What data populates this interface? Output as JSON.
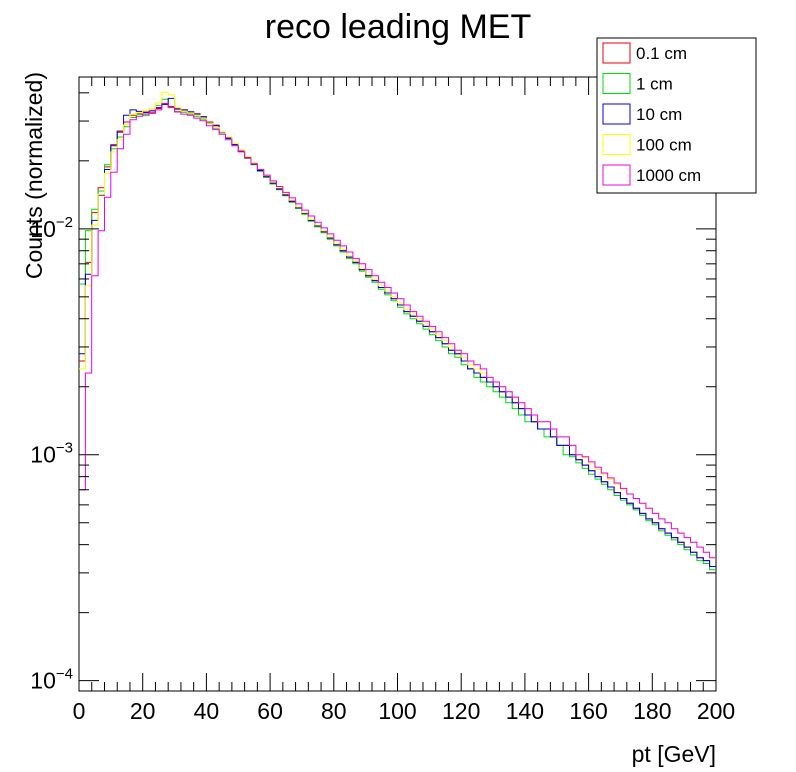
{
  "chart_data": {
    "type": "line",
    "title": "reco leading MET",
    "xlabel": "pt [GeV]",
    "ylabel": "Counts (normalized)",
    "xlim": [
      0,
      200
    ],
    "ylim": [
      9e-05,
      0.047
    ],
    "y_scale": "log",
    "x_ticks": [
      "0",
      "20",
      "40",
      "60",
      "80",
      "100",
      "120",
      "140",
      "160",
      "180",
      "200"
    ],
    "y_ticks": [
      {
        "base": "10",
        "exp": "−4",
        "value": 0.0001
      },
      {
        "base": "10",
        "exp": "−3",
        "value": 0.001
      },
      {
        "base": "10",
        "exp": "−2",
        "value": 0.01
      }
    ],
    "grid": false,
    "legend_position": "top-right",
    "x": [
      1,
      3,
      5,
      7,
      9,
      11,
      13,
      15,
      17,
      19,
      21,
      23,
      25,
      27,
      29,
      31,
      33,
      35,
      37,
      39,
      41,
      43,
      45,
      47,
      49,
      51,
      53,
      55,
      57,
      59,
      61,
      63,
      65,
      67,
      69,
      71,
      73,
      75,
      77,
      79,
      81,
      83,
      85,
      87,
      89,
      91,
      93,
      95,
      97,
      99,
      101,
      103,
      105,
      107,
      109,
      111,
      113,
      115,
      117,
      119,
      121,
      123,
      125,
      127,
      129,
      131,
      133,
      135,
      137,
      139,
      141,
      143,
      145,
      147,
      149,
      151,
      153,
      155,
      157,
      159,
      161,
      163,
      165,
      167,
      169,
      171,
      173,
      175,
      177,
      179,
      181,
      183,
      185,
      187,
      189,
      191,
      193,
      195,
      197,
      199
    ],
    "series": [
      {
        "name": "0.1 cm",
        "color": "#e8000b",
        "values": [
          0.0026,
          0.0071,
          0.0118,
          0.0152,
          0.0188,
          0.0236,
          0.0271,
          0.0297,
          0.0318,
          0.0324,
          0.0329,
          0.0325,
          0.0341,
          0.0359,
          0.0348,
          0.0338,
          0.0336,
          0.0328,
          0.0323,
          0.0314,
          0.0297,
          0.0288,
          0.0268,
          0.0253,
          0.0236,
          0.0221,
          0.0207,
          0.0194,
          0.0182,
          0.0171,
          0.016,
          0.0151,
          0.0142,
          0.0133,
          0.0124,
          0.0117,
          0.0109,
          0.0103,
          0.0097,
          0.0091,
          0.0085,
          0.008,
          0.0075,
          0.0071,
          0.0066,
          0.0062,
          0.0059,
          0.0055,
          0.0052,
          0.0049,
          0.0046,
          0.0043,
          0.0041,
          0.0039,
          0.0037,
          0.0035,
          0.0033,
          0.0031,
          0.0029,
          0.0028,
          0.0026,
          0.0024,
          0.0023,
          0.0022,
          0.0021,
          0.002,
          0.0019,
          0.0018,
          0.0017,
          0.0016,
          0.0015,
          0.0014,
          0.0013,
          0.0013,
          0.0012,
          0.0011,
          0.0011,
          0.001,
          0.00095,
          0.0009,
          0.00085,
          0.0008,
          0.00076,
          0.00072,
          0.00068,
          0.00064,
          0.00061,
          0.00058,
          0.00055,
          0.00052,
          0.0005,
          0.00047,
          0.00045,
          0.00043,
          0.00041,
          0.00039,
          0.00037,
          0.00035,
          0.00034,
          0.00032
        ]
      },
      {
        "name": "1 cm",
        "color": "#00dd00",
        "values": [
          0.0057,
          0.0098,
          0.0122,
          0.0147,
          0.0192,
          0.0226,
          0.0255,
          0.0283,
          0.0311,
          0.0321,
          0.0317,
          0.0339,
          0.0351,
          0.0375,
          0.0345,
          0.0331,
          0.0328,
          0.0322,
          0.0315,
          0.0306,
          0.0293,
          0.0279,
          0.0266,
          0.0251,
          0.0235,
          0.022,
          0.0205,
          0.0192,
          0.018,
          0.0169,
          0.0158,
          0.0149,
          0.014,
          0.0131,
          0.0123,
          0.0116,
          0.0108,
          0.0102,
          0.0096,
          0.009,
          0.0084,
          0.0079,
          0.0074,
          0.007,
          0.0065,
          0.0061,
          0.0058,
          0.0054,
          0.0051,
          0.0048,
          0.0045,
          0.0042,
          0.004,
          0.0038,
          0.0036,
          0.0034,
          0.0032,
          0.003,
          0.0028,
          0.0027,
          0.0025,
          0.0024,
          0.0022,
          0.0021,
          0.002,
          0.0019,
          0.0018,
          0.0017,
          0.0016,
          0.0015,
          0.0014,
          0.0014,
          0.0013,
          0.0012,
          0.0012,
          0.0011,
          0.001,
          0.00098,
          0.00092,
          0.00087,
          0.00082,
          0.00078,
          0.00074,
          0.0007,
          0.00066,
          0.00063,
          0.0006,
          0.00057,
          0.00054,
          0.00051,
          0.00049,
          0.00046,
          0.00044,
          0.00042,
          0.0004,
          0.00038,
          0.00036,
          0.00034,
          0.00033,
          0.00031
        ]
      },
      {
        "name": "10 cm",
        "color": "#0000e0",
        "values": [
          0.0028,
          0.0063,
          0.0109,
          0.0141,
          0.0183,
          0.0233,
          0.0268,
          0.0318,
          0.0336,
          0.0331,
          0.0327,
          0.0333,
          0.0344,
          0.0355,
          0.0378,
          0.0342,
          0.0336,
          0.033,
          0.0322,
          0.0313,
          0.0295,
          0.0286,
          0.0267,
          0.0252,
          0.0236,
          0.022,
          0.0206,
          0.0193,
          0.0181,
          0.017,
          0.0159,
          0.015,
          0.0141,
          0.0132,
          0.0124,
          0.0117,
          0.0109,
          0.0103,
          0.0097,
          0.0091,
          0.0085,
          0.008,
          0.0075,
          0.0071,
          0.0066,
          0.0062,
          0.0059,
          0.0055,
          0.0052,
          0.0049,
          0.0046,
          0.0043,
          0.0041,
          0.0039,
          0.0037,
          0.0035,
          0.0033,
          0.0031,
          0.0029,
          0.0028,
          0.0026,
          0.0024,
          0.0023,
          0.0022,
          0.0021,
          0.002,
          0.0019,
          0.0018,
          0.0017,
          0.0016,
          0.0015,
          0.0014,
          0.0013,
          0.0013,
          0.0012,
          0.0011,
          0.0011,
          0.001,
          0.00095,
          0.0009,
          0.00085,
          0.0008,
          0.00076,
          0.00072,
          0.00068,
          0.00064,
          0.00061,
          0.00058,
          0.00055,
          0.00052,
          0.0005,
          0.00047,
          0.00045,
          0.00043,
          0.00041,
          0.00039,
          0.00037,
          0.00035,
          0.00034,
          0.00032
        ]
      },
      {
        "name": "100 cm",
        "color": "#ffff00",
        "values": [
          0.0024,
          0.0056,
          0.0104,
          0.0142,
          0.0176,
          0.0219,
          0.0248,
          0.0289,
          0.0321,
          0.0326,
          0.0335,
          0.0339,
          0.0361,
          0.0402,
          0.0392,
          0.0344,
          0.0332,
          0.0326,
          0.0318,
          0.0309,
          0.0294,
          0.0281,
          0.0268,
          0.0255,
          0.0239,
          0.0224,
          0.0209,
          0.0196,
          0.0183,
          0.0172,
          0.0161,
          0.0152,
          0.0143,
          0.0134,
          0.0125,
          0.0118,
          0.011,
          0.0104,
          0.0098,
          0.0092,
          0.0086,
          0.0081,
          0.0076,
          0.0072,
          0.0067,
          0.0063,
          0.006,
          0.0056,
          0.0053,
          0.005,
          0.0047,
          0.0044,
          0.0042,
          0.004,
          0.0038,
          0.0036,
          0.0034,
          0.0032,
          0.003,
          0.0029,
          0.0027,
          0.0025,
          0.0024,
          0.0023,
          0.0022,
          0.0021,
          0.002,
          0.0019,
          0.0018,
          0.0017,
          0.0016,
          0.0015,
          0.0014,
          0.0014,
          0.0013,
          0.0012,
          0.0012,
          0.0011,
          0.001,
          0.00097,
          0.00091,
          0.00086,
          0.00082,
          0.00078,
          0.00074,
          0.0007,
          0.00067,
          0.00064,
          0.00061,
          0.00058,
          0.00055,
          0.00052,
          0.0005,
          0.00047,
          0.00045,
          0.00043,
          0.00041,
          0.00039,
          0.00037,
          0.00035
        ]
      },
      {
        "name": "1000 cm",
        "color": "#ee00ee",
        "values": [
          0.0007,
          0.0023,
          0.0062,
          0.0098,
          0.0138,
          0.0178,
          0.0226,
          0.0262,
          0.0304,
          0.0315,
          0.0322,
          0.0328,
          0.0336,
          0.0358,
          0.0344,
          0.0329,
          0.0322,
          0.0318,
          0.0309,
          0.0301,
          0.0286,
          0.0275,
          0.0262,
          0.0248,
          0.0233,
          0.0219,
          0.0206,
          0.0194,
          0.0183,
          0.0173,
          0.0163,
          0.0154,
          0.0145,
          0.0137,
          0.0129,
          0.0121,
          0.0114,
          0.0107,
          0.0101,
          0.0095,
          0.0089,
          0.0084,
          0.0079,
          0.0074,
          0.007,
          0.0066,
          0.0062,
          0.0058,
          0.0055,
          0.0052,
          0.0049,
          0.0046,
          0.0043,
          0.0041,
          0.0039,
          0.0037,
          0.0035,
          0.0033,
          0.0031,
          0.0029,
          0.0028,
          0.0026,
          0.0025,
          0.0024,
          0.0022,
          0.0021,
          0.002,
          0.0019,
          0.0018,
          0.0017,
          0.0016,
          0.0015,
          0.0014,
          0.0014,
          0.0013,
          0.0012,
          0.0012,
          0.0011,
          0.001,
          0.00098,
          0.00093,
          0.00088,
          0.00083,
          0.00079,
          0.00075,
          0.00071,
          0.00067,
          0.00064,
          0.00061,
          0.00058,
          0.00055,
          0.00052,
          0.0005,
          0.00047,
          0.00045,
          0.00043,
          0.00041,
          0.00039,
          0.00037,
          0.00035
        ]
      }
    ]
  }
}
